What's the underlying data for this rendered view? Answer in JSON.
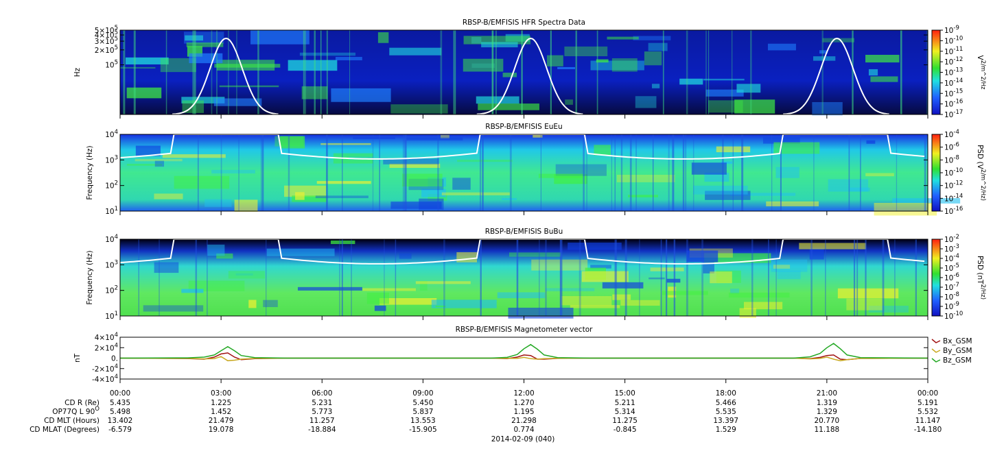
{
  "chart_data": [
    {
      "type": "spectrogram",
      "title": "RBSP-B/EMFISIS  HFR Spectra Data",
      "ylabel": "Hz",
      "log_scale": true,
      "ylim": [
        10000,
        500000
      ],
      "yticks": [
        {
          "value": 100000,
          "label": "10^5"
        },
        {
          "value": 200000,
          "label": "2×10^5"
        },
        {
          "value": 300000,
          "label": "3×10^5"
        },
        {
          "value": 400000,
          "label": "4×10^5"
        },
        {
          "value": 500000,
          "label": "5×10^5"
        }
      ],
      "zlabel": "V^2/m^2/Hz",
      "zlim": [
        1e-17,
        1e-09
      ],
      "zticks": [
        {
          "value": 1e-17,
          "label": "10^-17"
        },
        {
          "value": 1e-16,
          "label": "10^-16"
        },
        {
          "value": 1e-15,
          "label": "10^-15"
        },
        {
          "value": 1e-14,
          "label": "10^-14"
        },
        {
          "value": 1e-13,
          "label": "10^-13"
        },
        {
          "value": 1e-12,
          "label": "10^-12"
        },
        {
          "value": 1e-11,
          "label": "10^-11"
        },
        {
          "value": 1e-10,
          "label": "10^-10"
        },
        {
          "value": 1e-09,
          "label": "10^-9"
        }
      ]
    },
    {
      "type": "spectrogram",
      "title": "RBSP-B/EMFISIS  EuEu",
      "ylabel": "Frequency (Hz)",
      "log_scale": true,
      "ylim": [
        10,
        10000
      ],
      "yticks": [
        {
          "value": 10,
          "label": "10^1"
        },
        {
          "value": 100,
          "label": "10^2"
        },
        {
          "value": 1000,
          "label": "10^3"
        },
        {
          "value": 10000,
          "label": "10^4"
        }
      ],
      "zlabel": "PSD (V^2/m^2/Hz)",
      "zlim": [
        1e-16,
        0.0001
      ],
      "zticks": [
        {
          "value": 1e-16,
          "label": "10^-16"
        },
        {
          "value": 1e-14,
          "label": "10^-14"
        },
        {
          "value": 1e-12,
          "label": "10^-12"
        },
        {
          "value": 1e-10,
          "label": "10^-10"
        },
        {
          "value": 1e-08,
          "label": "10^-8"
        },
        {
          "value": 1e-06,
          "label": "10^-6"
        },
        {
          "value": 0.0001,
          "label": "10^-4"
        }
      ]
    },
    {
      "type": "spectrogram",
      "title": "RBSP-B/EMFISIS  BuBu",
      "ylabel": "Frequency (Hz)",
      "log_scale": true,
      "ylim": [
        10,
        10000
      ],
      "yticks": [
        {
          "value": 10,
          "label": "10^1"
        },
        {
          "value": 100,
          "label": "10^2"
        },
        {
          "value": 1000,
          "label": "10^3"
        },
        {
          "value": 10000,
          "label": "10^4"
        }
      ],
      "zlabel": "PSD (nT^2/Hz)",
      "zlim": [
        1e-10,
        0.01
      ],
      "zticks": [
        {
          "value": 1e-10,
          "label": "10^-10"
        },
        {
          "value": 1e-09,
          "label": "10^-9"
        },
        {
          "value": 1e-08,
          "label": "10^-8"
        },
        {
          "value": 1e-07,
          "label": "10^-7"
        },
        {
          "value": 1e-06,
          "label": "10^-6"
        },
        {
          "value": 1e-05,
          "label": "10^-5"
        },
        {
          "value": 0.0001,
          "label": "10^-4"
        },
        {
          "value": 0.001,
          "label": "10^-3"
        },
        {
          "value": 0.01,
          "label": "10^-2"
        }
      ]
    },
    {
      "type": "line",
      "title": "RBSP-B/EMFISIS  Magnetometer vector",
      "ylabel": "nT",
      "legend": "right",
      "ylim": [
        -40000,
        40000
      ],
      "yticks": [
        {
          "value": -40000,
          "label": "-4×10^4"
        },
        {
          "value": -20000,
          "label": "-2×10^4"
        },
        {
          "value": 0,
          "label": "0."
        },
        {
          "value": 20000,
          "label": "2×10^4"
        },
        {
          "value": 40000,
          "label": "4×10^4"
        }
      ],
      "xlim": [
        0,
        24
      ],
      "xticks": [
        {
          "value": 0,
          "label": "00:00"
        },
        {
          "value": 3,
          "label": "03:00"
        },
        {
          "value": 6,
          "label": "06:00"
        },
        {
          "value": 9,
          "label": "09:00"
        },
        {
          "value": 12,
          "label": "12:00"
        },
        {
          "value": 15,
          "label": "15:00"
        },
        {
          "value": 18,
          "label": "18:00"
        },
        {
          "value": 21,
          "label": "21:00"
        },
        {
          "value": 24,
          "label": "00:00"
        }
      ],
      "x": [
        0,
        2,
        2.5,
        2.8,
        3.0,
        3.2,
        3.4,
        3.6,
        4,
        5,
        11,
        11.5,
        11.8,
        12.0,
        12.2,
        12.4,
        12.6,
        13,
        14,
        20,
        20.5,
        20.8,
        21.0,
        21.2,
        21.4,
        21.6,
        22,
        24
      ],
      "series": [
        {
          "name": "Bx_GSM",
          "color": "#a01010",
          "values": [
            0,
            -800,
            -2000,
            2000,
            8000,
            10000,
            2000,
            -3000,
            -1000,
            0,
            0,
            -1000,
            2000,
            6000,
            5000,
            -2000,
            -2000,
            -500,
            0,
            0,
            -1000,
            1500,
            5000,
            6000,
            -2000,
            -3000,
            -500,
            0
          ]
        },
        {
          "name": "By_GSM",
          "color": "#c8a820",
          "values": [
            0,
            -500,
            -1500,
            -1000,
            3000,
            -5000,
            -4000,
            -2000,
            -500,
            0,
            0,
            -500,
            -500,
            1500,
            -1000,
            -2000,
            -1000,
            -200,
            0,
            0,
            -1500,
            -500,
            2000,
            -2000,
            -5000,
            -3000,
            -500,
            0
          ]
        },
        {
          "name": "Bz_GSM",
          "color": "#22a822",
          "values": [
            0,
            500,
            2000,
            6000,
            14000,
            22000,
            14000,
            5000,
            1000,
            0,
            0,
            1500,
            7000,
            18000,
            26000,
            17000,
            6000,
            1000,
            0,
            0,
            2500,
            9000,
            20000,
            28000,
            18000,
            6000,
            1000,
            0
          ]
        }
      ]
    }
  ],
  "ephemeris": {
    "rows": [
      {
        "label": "CD R (Re)",
        "values": [
          "5.435",
          "1.225",
          "5.231",
          "5.450",
          "1.270",
          "5.211",
          "5.466",
          "1.319",
          "5.191"
        ]
      },
      {
        "label": "OP77Q L 90^O",
        "values": [
          "5.498",
          "1.452",
          "5.773",
          "5.837",
          "1.195",
          "5.314",
          "5.535",
          "1.329",
          "5.532"
        ]
      },
      {
        "label": "CD MLT (Hours)",
        "values": [
          "13.402",
          "21.479",
          "11.257",
          "13.553",
          "21.298",
          "11.275",
          "13.397",
          "20.770",
          "11.147"
        ]
      },
      {
        "label": "CD MLAT (Degrees)",
        "values": [
          "-6.579",
          "19.078",
          "-18.884",
          "-15.905",
          "0.774",
          "-0.845",
          "1.529",
          "11.188",
          "-14.180"
        ]
      }
    ]
  },
  "date": "2014-02-09 (040)"
}
